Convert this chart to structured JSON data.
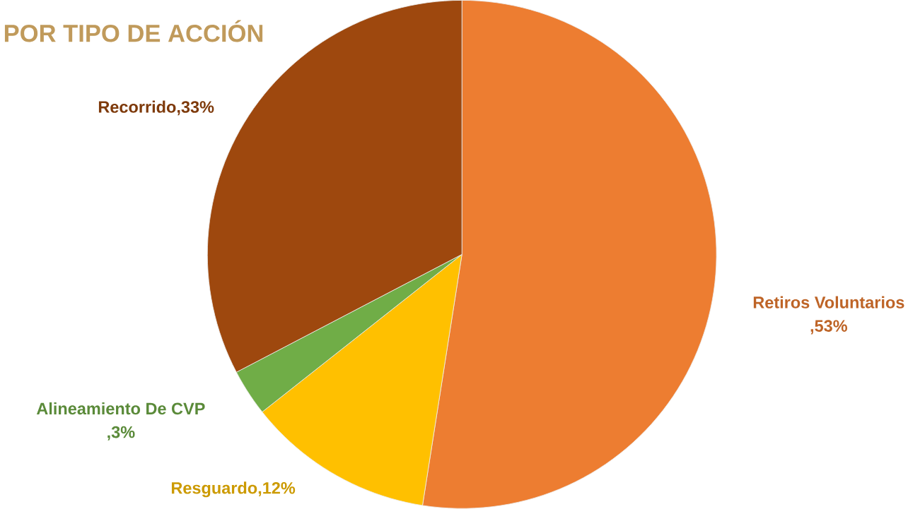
{
  "chart_data": {
    "type": "pie",
    "title": "POR TIPO DE ACCIÓN",
    "categories": [
      "Retiros Voluntarios",
      "Resguardo",
      "Alineamiento De CVP",
      "Recorrido"
    ],
    "values": [
      53,
      12,
      3,
      33
    ],
    "value_labels": [
      ",53%",
      ",12%",
      ",3%",
      ",33%"
    ],
    "colors": [
      "#ed7d31",
      "#ffc000",
      "#70ad47",
      "#9e480e"
    ]
  }
}
